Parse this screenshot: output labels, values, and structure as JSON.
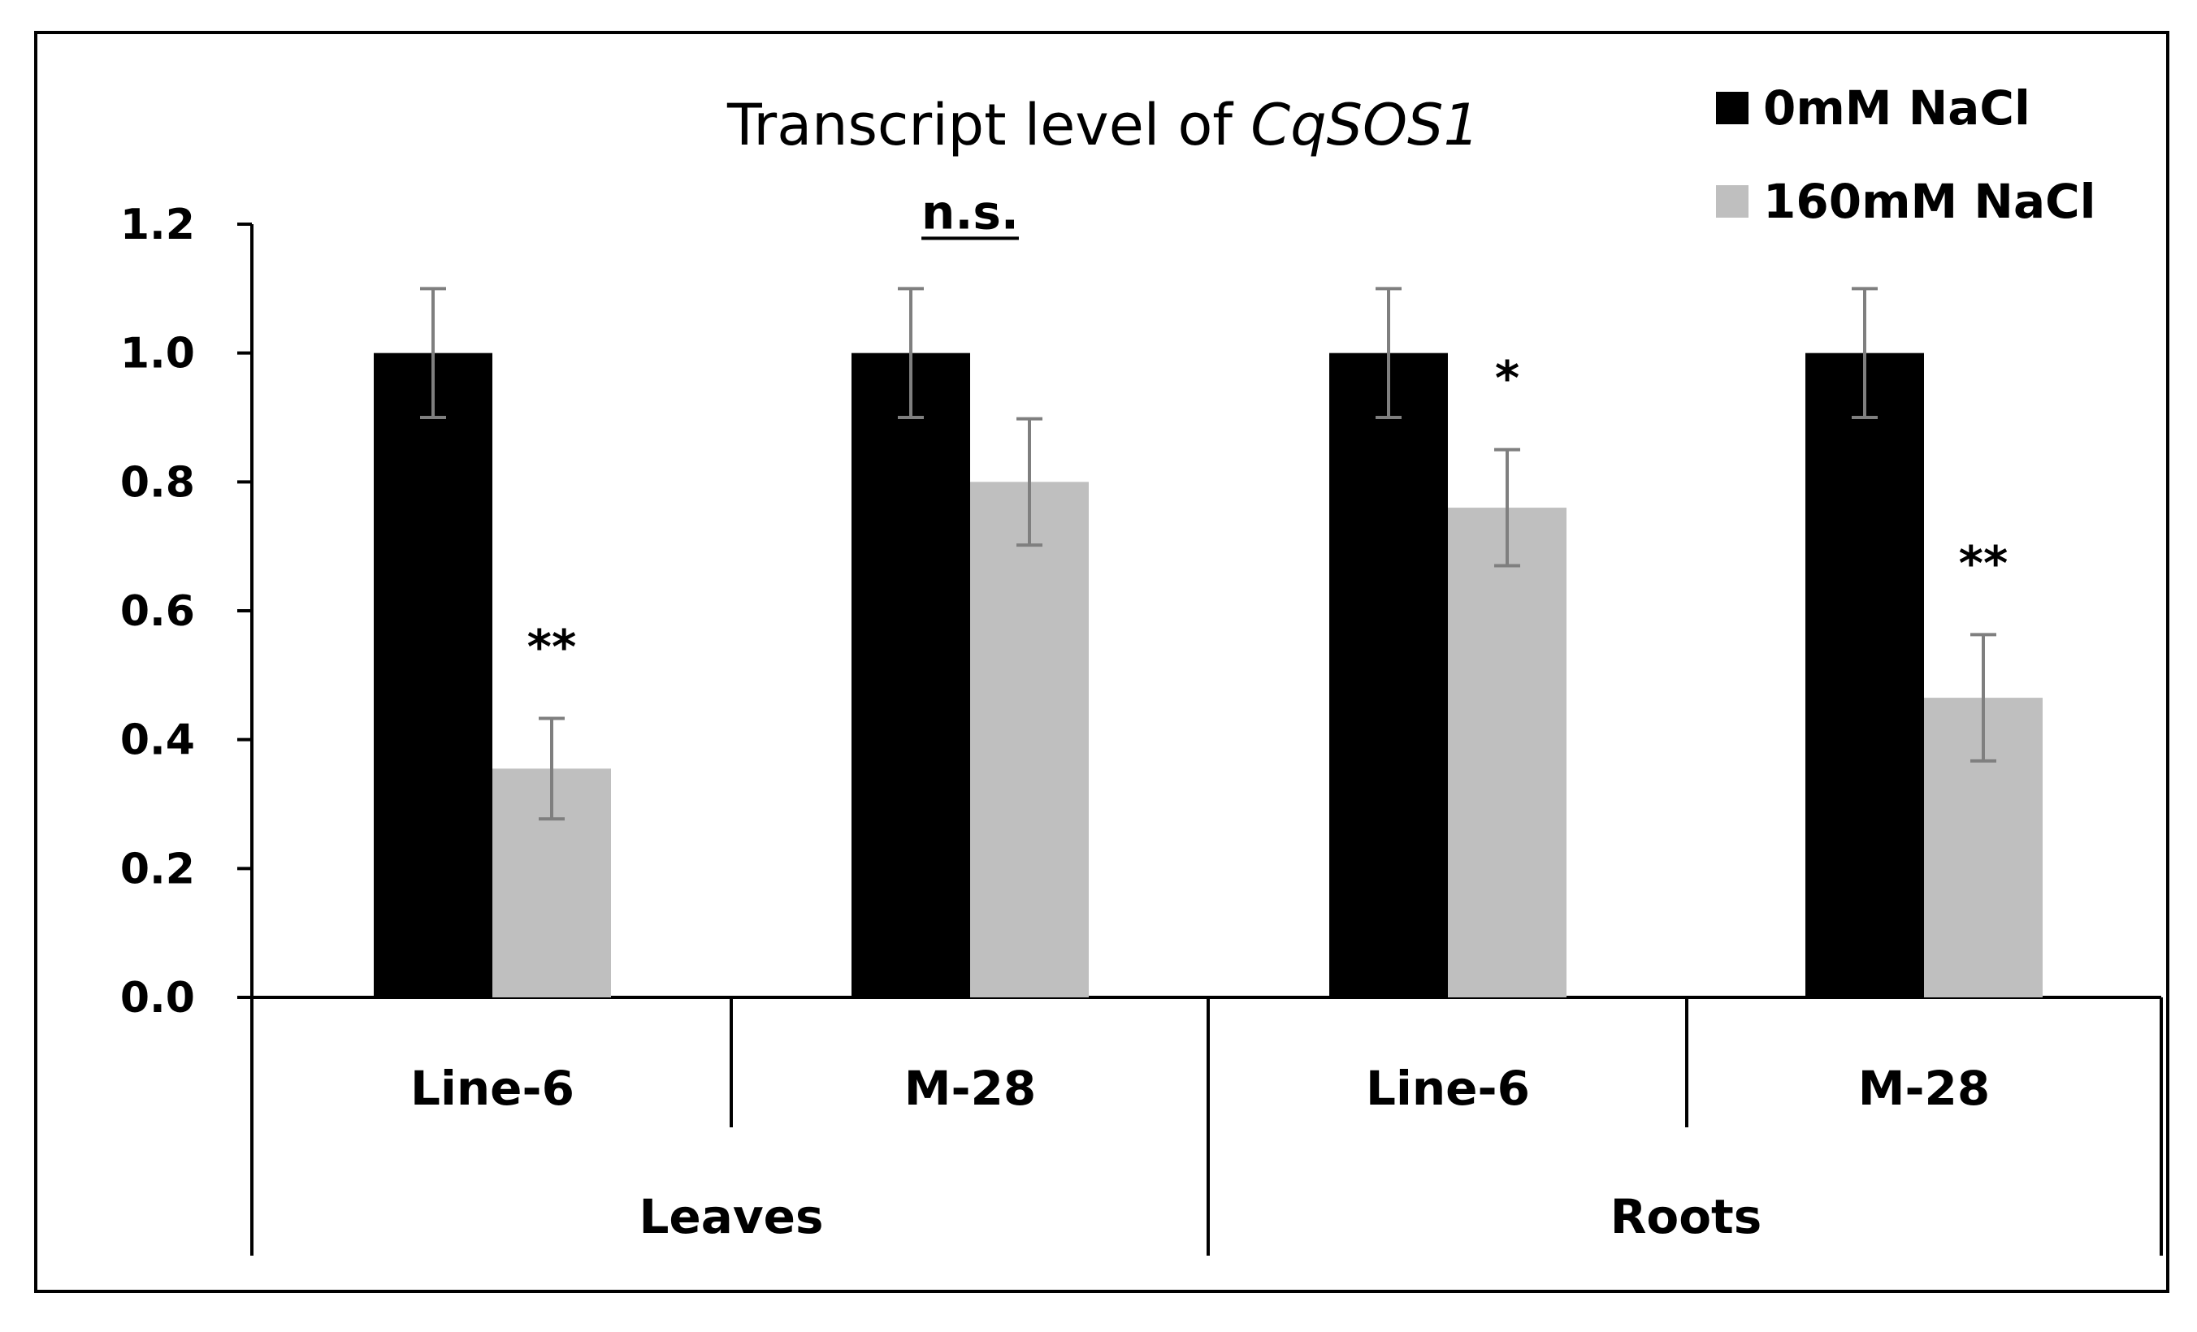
{
  "chart_data": {
    "type": "bar",
    "title": "Transcript level of ",
    "title_italic": "CqSOS1",
    "ylim": [
      0,
      1.2
    ],
    "yticks": [
      "0.0",
      "0.2",
      "0.4",
      "0.6",
      "0.8",
      "1.0",
      "1.2"
    ],
    "ytick_values": [
      0,
      0.2,
      0.4,
      0.6,
      0.8,
      1.0,
      1.2
    ],
    "groups": [
      "Leaves",
      "Roots"
    ],
    "categories": [
      "Line-6",
      "M-28",
      "Line-6",
      "M-28"
    ],
    "category_group": [
      0,
      0,
      1,
      1
    ],
    "series": [
      {
        "name": "0mM NaCl",
        "color": "#000000",
        "values": [
          1.0,
          1.0,
          1.0,
          1.0
        ],
        "errors": [
          0.1,
          0.1,
          0.1,
          0.1
        ]
      },
      {
        "name": "160mM NaCl",
        "color": "#bfbfbf",
        "values": [
          0.355,
          0.8,
          0.76,
          0.465
        ],
        "errors": [
          0.078,
          0.098,
          0.09,
          0.098
        ]
      }
    ],
    "annotations": [
      {
        "category_index": 0,
        "text": "**",
        "underline": false
      },
      {
        "category_index": 1,
        "text": "n.s.",
        "underline": true
      },
      {
        "category_index": 2,
        "text": "*",
        "underline": false
      },
      {
        "category_index": 3,
        "text": "**",
        "underline": false
      }
    ],
    "legend_position": "top-right"
  }
}
